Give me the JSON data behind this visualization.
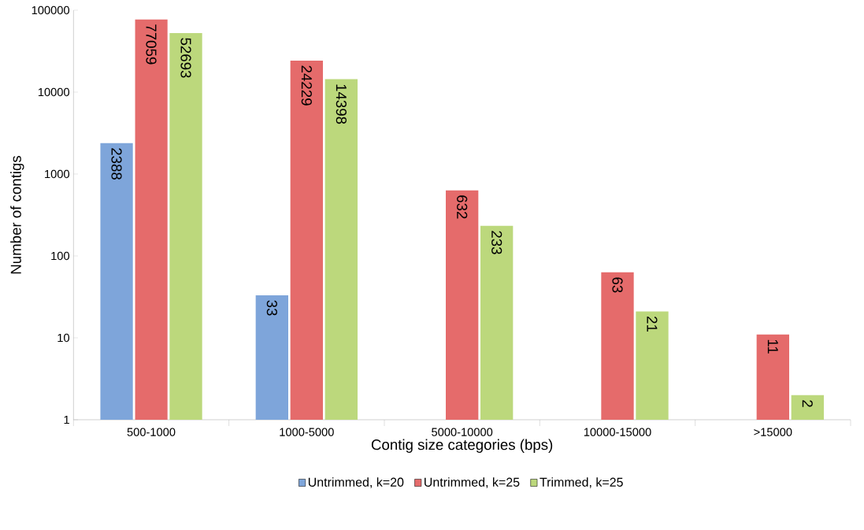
{
  "chart_data": {
    "type": "bar",
    "xlabel": "Contig size categories (bps)",
    "ylabel": "Number of contigs",
    "categories": [
      "500-1000",
      "1000-5000",
      "5000-10000",
      "10000-15000",
      ">15000"
    ],
    "series": [
      {
        "name": "Untrimmed, k=20",
        "color": "#7ea5da",
        "values": [
          2388,
          33,
          null,
          null,
          null
        ]
      },
      {
        "name": "Untrimmed, k=25",
        "color": "#e56b6b",
        "values": [
          77059,
          24229,
          632,
          63,
          11
        ]
      },
      {
        "name": "Trimmed, k=25",
        "color": "#bcd87c",
        "values": [
          52693,
          14398,
          233,
          21,
          2
        ]
      }
    ],
    "log": true,
    "ylim": [
      1,
      100000
    ],
    "yticks": [
      1,
      10,
      100,
      1000,
      10000,
      100000
    ],
    "data_labels": true,
    "legend": "bottom",
    "grid": false
  }
}
